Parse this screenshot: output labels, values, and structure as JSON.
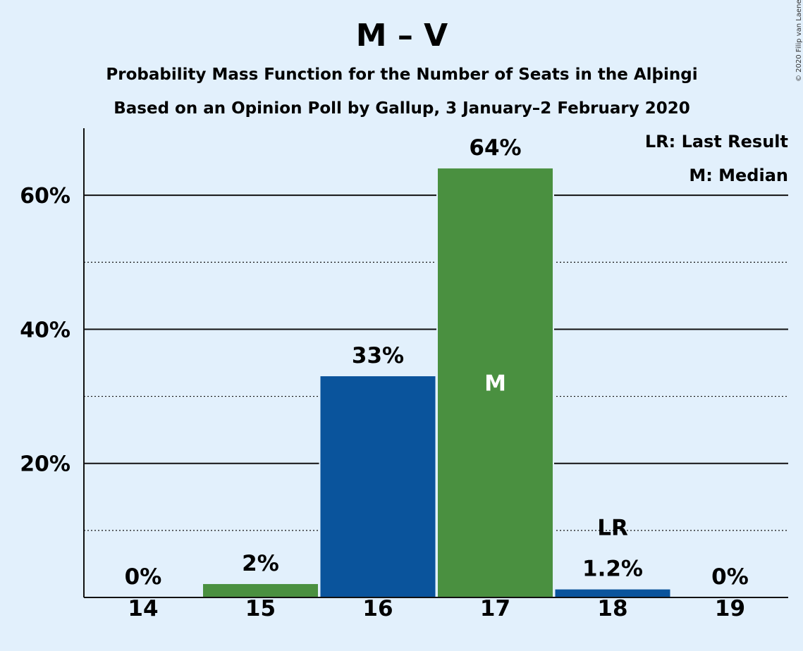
{
  "title": "M – V",
  "subtitle1": "Probability Mass Function for the Number of Seats in the Alþingi",
  "subtitle2": "Based on an Opinion Poll by Gallup, 3 January–2 February 2020",
  "copyright": "© 2020 Filip van Laenen",
  "legend": {
    "last_result": "LR: Last Result",
    "median": "M: Median"
  },
  "colors": {
    "background": "#e2f0fc",
    "green": "#4a9040",
    "blue": "#0a549c"
  },
  "chart_data": {
    "type": "bar",
    "categories": [
      "14",
      "15",
      "16",
      "17",
      "18",
      "19"
    ],
    "values": [
      0,
      2,
      33,
      64,
      1.2,
      0
    ],
    "data_labels": [
      "0%",
      "2%",
      "33%",
      "64%",
      "1.2%",
      "0%"
    ],
    "bar_colors": [
      "green",
      "green",
      "blue",
      "green",
      "blue",
      "green"
    ],
    "yticks": [
      20,
      40,
      60
    ],
    "ytick_labels": [
      "20%",
      "40%",
      "60%"
    ],
    "minor_gridlines": [
      10,
      30,
      50
    ],
    "ylim": [
      0,
      70
    ],
    "markers": [
      {
        "category": "17",
        "label": "M",
        "meaning": "Median"
      },
      {
        "category": "18",
        "label": "LR",
        "meaning": "Last Result"
      }
    ],
    "legend_position": "top-right"
  }
}
